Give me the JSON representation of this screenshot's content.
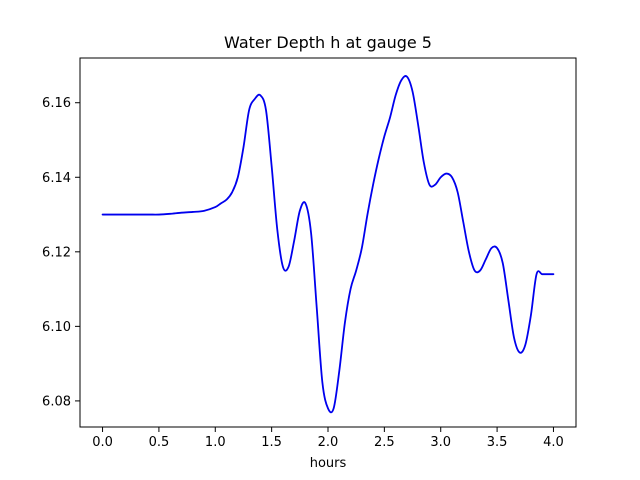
{
  "chart_data": {
    "type": "line",
    "title": "Water Depth h at gauge 5",
    "xlabel": "hours",
    "ylabel": "",
    "xlim": [
      -0.2,
      4.2
    ],
    "ylim": [
      6.073,
      6.172
    ],
    "xticks": [
      0.0,
      0.5,
      1.0,
      1.5,
      2.0,
      2.5,
      3.0,
      3.5,
      4.0
    ],
    "xtick_labels": [
      "0.0",
      "0.5",
      "1.0",
      "1.5",
      "2.0",
      "2.5",
      "3.0",
      "3.5",
      "4.0"
    ],
    "yticks": [
      6.08,
      6.1,
      6.12,
      6.14,
      6.16
    ],
    "ytick_labels": [
      "6.08",
      "6.10",
      "6.12",
      "6.14",
      "6.16"
    ],
    "grid": false,
    "series": [
      {
        "color": "#0000ee",
        "x": [
          0.0,
          0.2,
          0.4,
          0.5,
          0.6,
          0.7,
          0.8,
          0.9,
          1.0,
          1.05,
          1.1,
          1.15,
          1.2,
          1.25,
          1.3,
          1.35,
          1.4,
          1.45,
          1.5,
          1.55,
          1.6,
          1.65,
          1.7,
          1.75,
          1.8,
          1.85,
          1.9,
          1.95,
          2.0,
          2.05,
          2.1,
          2.15,
          2.2,
          2.25,
          2.3,
          2.35,
          2.4,
          2.45,
          2.5,
          2.55,
          2.6,
          2.65,
          2.7,
          2.75,
          2.8,
          2.85,
          2.9,
          2.95,
          3.0,
          3.05,
          3.1,
          3.15,
          3.2,
          3.25,
          3.3,
          3.35,
          3.4,
          3.45,
          3.5,
          3.55,
          3.6,
          3.65,
          3.7,
          3.75,
          3.8,
          3.85,
          3.9,
          3.95,
          4.0
        ],
        "y": [
          6.13,
          6.13,
          6.13,
          6.13,
          6.1302,
          6.1305,
          6.1307,
          6.131,
          6.132,
          6.133,
          6.134,
          6.136,
          6.14,
          6.148,
          6.158,
          6.161,
          6.162,
          6.158,
          6.143,
          6.126,
          6.116,
          6.116,
          6.123,
          6.131,
          6.133,
          6.125,
          6.105,
          6.085,
          6.078,
          6.078,
          6.088,
          6.101,
          6.11,
          6.115,
          6.121,
          6.13,
          6.138,
          6.145,
          6.151,
          6.156,
          6.162,
          6.166,
          6.167,
          6.163,
          6.154,
          6.144,
          6.138,
          6.138,
          6.14,
          6.141,
          6.14,
          6.136,
          6.128,
          6.12,
          6.115,
          6.115,
          6.118,
          6.121,
          6.121,
          6.117,
          6.107,
          6.097,
          6.093,
          6.095,
          6.103,
          6.114,
          6.114,
          6.114,
          6.114
        ]
      }
    ]
  }
}
